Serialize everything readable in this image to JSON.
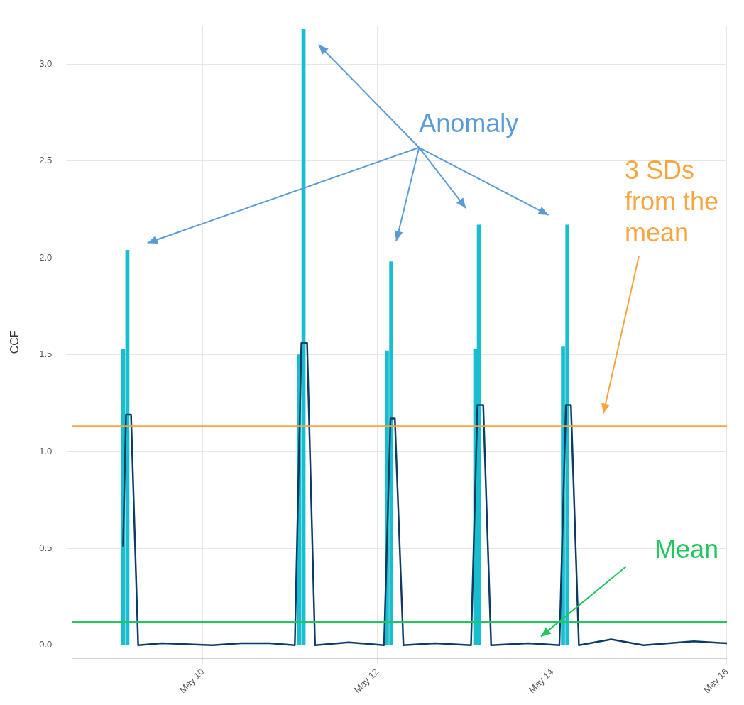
{
  "chart_data": {
    "type": "bar",
    "ylabel": "CCF",
    "xlim": [
      "--05-08T12:00",
      "--05-16"
    ],
    "xticks": [
      {
        "value": "--05-10",
        "label": "May 10"
      },
      {
        "value": "--05-12",
        "label": "May 12"
      },
      {
        "value": "--05-14",
        "label": "May 14"
      },
      {
        "value": "--05-16",
        "label": "May 16"
      }
    ],
    "ylim": [
      -0.07,
      3.2
    ],
    "yticks": [
      {
        "value": 0,
        "label": "0.0"
      },
      0.5,
      {
        "value": 1,
        "label": "1.0"
      },
      1.5,
      {
        "value": 2,
        "label": "2.0"
      },
      2.5,
      {
        "value": 3,
        "label": "3.0"
      }
    ],
    "grid": true,
    "legend": false,
    "series": [
      {
        "color": "#17becf",
        "x": [
          "--05-09T02:04",
          "--05-09T03:15",
          "--05-11T02:28",
          "--05-11T03:39",
          "--05-12T02:34",
          "--05-12T03:45",
          "--05-13T02:51",
          "--05-13T03:50",
          "--05-14T02:57",
          "--05-14T04:09"
        ],
        "values": [
          1.53,
          2.04,
          1.5,
          3.18,
          1.52,
          1.98,
          1.53,
          2.17,
          1.54,
          2.17
        ]
      },
      {
        "type": "line",
        "color": "#0d3b66",
        "x": [
          "--05-09T02:04",
          "--05-09T02:52",
          "--05-09T04:15",
          "--05-09T06:13",
          "--05-09T12:45",
          "--05-10T02:34",
          "--05-10T10:28",
          "--05-10T18:22",
          "--05-11T01:16",
          "--05-11T03:04",
          "--05-11T04:38",
          "--05-11T06:49",
          "--05-11T16:06",
          "--05-12T01:47",
          "--05-12T03:33",
          "--05-12T04:45",
          "--05-12T07:06",
          "--05-12T15:47",
          "--05-13T01:41",
          "--05-13T03:27",
          "--05-13T05:02",
          "--05-13T07:12",
          "--05-13T17:28",
          "--05-14T01:58",
          "--05-14T03:45",
          "--05-14T05:08",
          "--05-14T07:19",
          "--05-14T16:12",
          "--05-15T01:05",
          "--05-15T14:54",
          "--05-16"
        ],
        "values": [
          0.51,
          1.19,
          1.19,
          0,
          0.01,
          0,
          0.01,
          0.01,
          0,
          1.56,
          1.56,
          0,
          0.015,
          0,
          1.17,
          1.17,
          0,
          0.01,
          0,
          1.24,
          1.24,
          0,
          0.01,
          0,
          1.24,
          1.24,
          0,
          0.03,
          0,
          0.02,
          0.01
        ]
      }
    ],
    "ref_lines": [
      {
        "axis": "y",
        "value": 1.13,
        "label": "3 SDs from the mean",
        "color": "#f7a540"
      },
      {
        "axis": "y",
        "value": 0.12,
        "label": "Mean",
        "color": "#22c55e"
      }
    ],
    "annotations": [
      "Anomaly"
    ]
  }
}
